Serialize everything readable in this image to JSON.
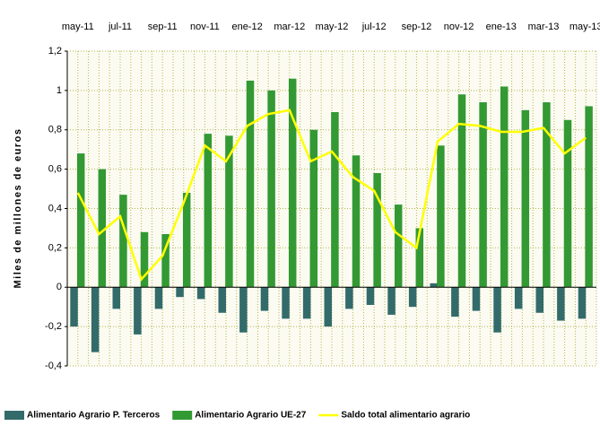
{
  "chart_data": {
    "type": "bar",
    "y_label": "Miles de millones de euros",
    "categories": [
      "may-11",
      null,
      "jul-11",
      null,
      "sep-11",
      null,
      "nov-11",
      null,
      "ene-12",
      null,
      "mar-12",
      null,
      "may-12",
      null,
      "jul-12",
      null,
      "sep-12",
      null,
      "nov-12",
      null,
      "ene-13",
      null,
      "mar-13",
      null,
      "may-13"
    ],
    "series": [
      {
        "name": "Alimentario Agrario P. Terceros",
        "color": "#336b6b",
        "type": "bar",
        "values": [
          -0.2,
          -0.33,
          -0.11,
          -0.24,
          -0.11,
          -0.05,
          -0.06,
          -0.13,
          -0.23,
          -0.12,
          -0.16,
          -0.16,
          -0.2,
          -0.11,
          -0.09,
          -0.14,
          -0.1,
          0.02,
          -0.15,
          -0.12,
          -0.23,
          -0.11,
          -0.13,
          -0.17,
          -0.16
        ]
      },
      {
        "name": "Alimentario Agrario UE-27",
        "color": "#339933",
        "type": "bar",
        "values": [
          0.68,
          0.6,
          0.47,
          0.28,
          0.27,
          0.48,
          0.78,
          0.77,
          1.05,
          1.0,
          1.06,
          0.8,
          0.89,
          0.67,
          0.58,
          0.42,
          0.3,
          0.72,
          0.98,
          0.94,
          1.02,
          0.9,
          0.94,
          0.85,
          0.92
        ]
      },
      {
        "name": "Saldo total alimentario agrario",
        "color": "#ffff00",
        "type": "line",
        "values": [
          0.48,
          0.27,
          0.36,
          0.04,
          0.16,
          0.43,
          0.72,
          0.64,
          0.82,
          0.88,
          0.9,
          0.64,
          0.69,
          0.56,
          0.49,
          0.28,
          0.2,
          0.74,
          0.83,
          0.82,
          0.79,
          0.79,
          0.81,
          0.68,
          0.76
        ]
      }
    ],
    "ylim": [
      -0.4,
      1.2
    ],
    "yticks": [
      {
        "value": -0.4,
        "label": "-0,4"
      },
      {
        "value": -0.2,
        "label": "-0,2"
      },
      0,
      {
        "value": 0.2,
        "label": "0,2"
      },
      {
        "value": 0.4,
        "label": "0,4"
      },
      {
        "value": 0.6,
        "label": "0,6"
      },
      {
        "value": 0.8,
        "label": "0,8"
      },
      1,
      {
        "value": 1.2,
        "label": "1,2"
      }
    ],
    "grid": true,
    "legend": "bottom"
  }
}
